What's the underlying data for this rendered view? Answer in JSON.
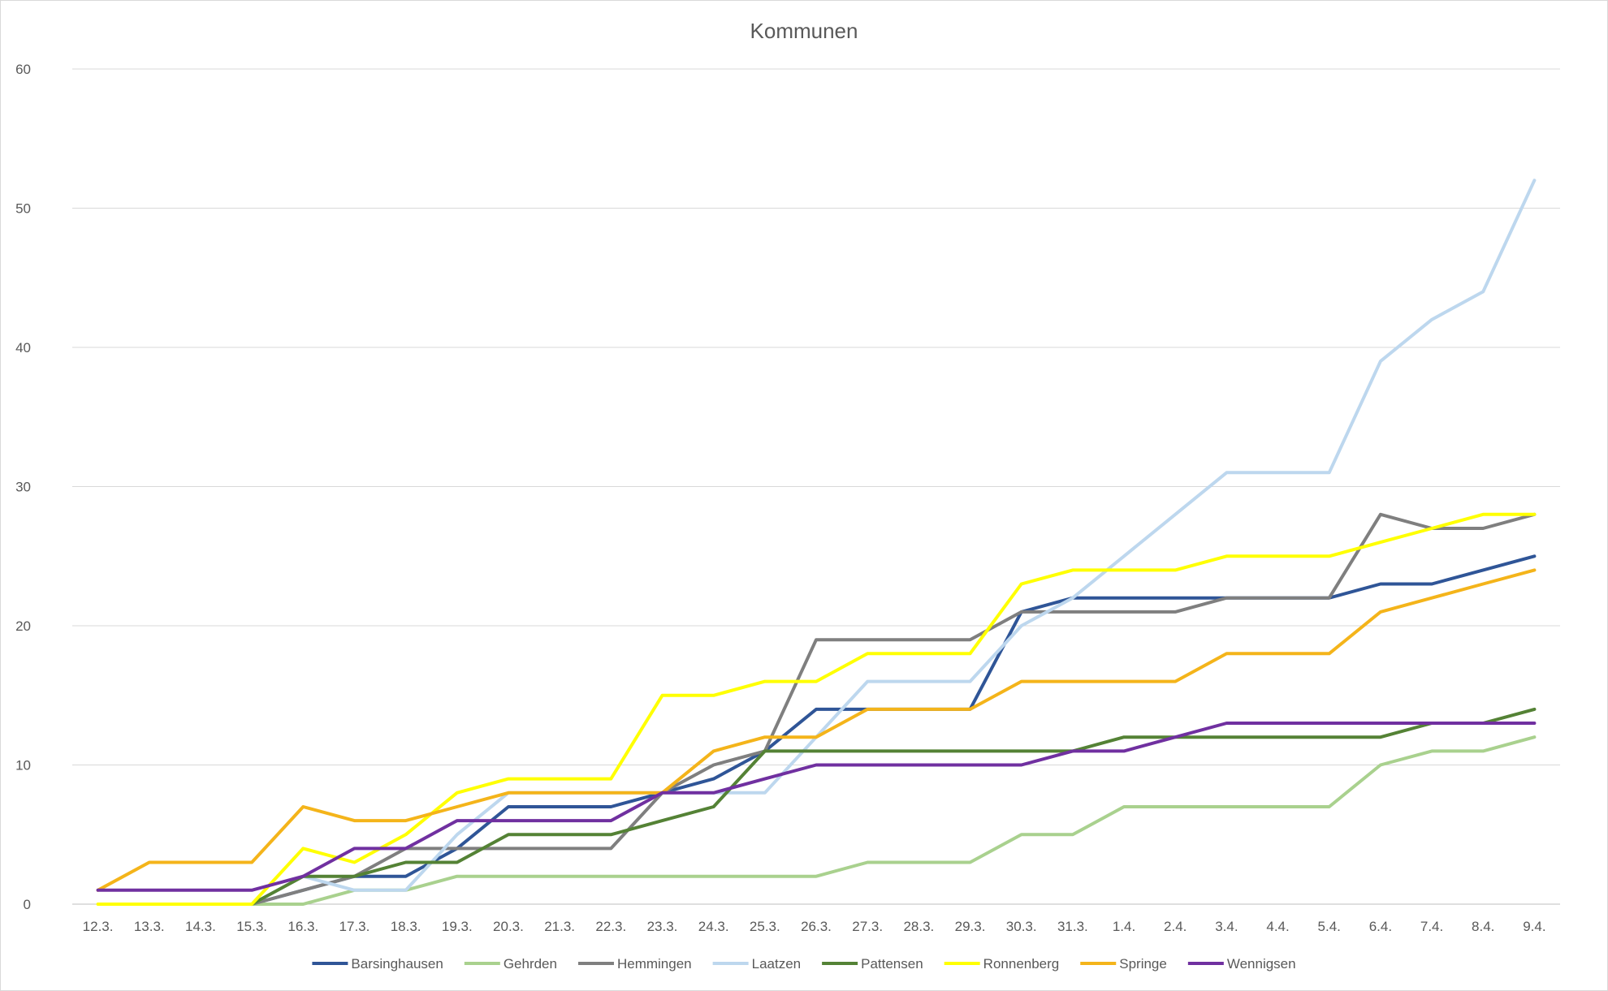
{
  "chart_data": {
    "type": "line",
    "title": "Kommunen",
    "xlabel": "",
    "ylabel": "",
    "ylim": [
      0,
      60
    ],
    "yticks": [
      0,
      10,
      20,
      30,
      40,
      50,
      60
    ],
    "grid": true,
    "legend": "bottom",
    "categories": [
      "12.3.",
      "13.3.",
      "14.3.",
      "15.3.",
      "16.3.",
      "17.3.",
      "18.3.",
      "19.3.",
      "20.3.",
      "21.3.",
      "22.3.",
      "23.3.",
      "24.3.",
      "25.3.",
      "26.3.",
      "27.3.",
      "28.3.",
      "29.3.",
      "30.3.",
      "31.3.",
      "1.4.",
      "2.4.",
      "3.4.",
      "4.4.",
      "5.4.",
      "6.4.",
      "7.4.",
      "8.4.",
      "9.4."
    ],
    "series": [
      {
        "name": "Barsinghausen",
        "color": "#2f5597",
        "values": [
          null,
          null,
          null,
          0,
          1,
          2,
          2,
          4,
          7,
          7,
          7,
          8,
          9,
          11,
          14,
          14,
          14,
          14,
          21,
          22,
          22,
          22,
          22,
          22,
          22,
          23,
          23,
          24,
          25
        ]
      },
      {
        "name": "Gehrden",
        "color": "#a9d18e",
        "values": [
          null,
          null,
          null,
          0,
          0,
          1,
          1,
          2,
          2,
          2,
          2,
          2,
          2,
          2,
          2,
          3,
          3,
          3,
          5,
          5,
          7,
          7,
          7,
          7,
          7,
          10,
          11,
          11,
          12
        ]
      },
      {
        "name": "Hemmingen",
        "color": "#7f7f7f",
        "values": [
          null,
          null,
          null,
          0,
          1,
          2,
          4,
          4,
          4,
          4,
          4,
          8,
          10,
          11,
          19,
          19,
          19,
          19,
          21,
          21,
          21,
          21,
          22,
          22,
          22,
          28,
          27,
          27,
          28
        ]
      },
      {
        "name": "Laatzen",
        "color": "#bdd7ee",
        "values": [
          null,
          null,
          null,
          0,
          2,
          1,
          1,
          5,
          8,
          8,
          8,
          8,
          8,
          8,
          12,
          16,
          16,
          16,
          20,
          22,
          25,
          28,
          31,
          31,
          31,
          39,
          42,
          44,
          52
        ]
      },
      {
        "name": "Pattensen",
        "color": "#548235",
        "values": [
          null,
          null,
          null,
          0,
          2,
          2,
          3,
          3,
          5,
          5,
          5,
          6,
          7,
          11,
          11,
          11,
          11,
          11,
          11,
          11,
          12,
          12,
          12,
          12,
          12,
          12,
          13,
          13,
          14
        ]
      },
      {
        "name": "Ronnenberg",
        "color": "#ffff00",
        "values": [
          0,
          0,
          0,
          0,
          4,
          3,
          5,
          8,
          9,
          9,
          9,
          15,
          15,
          16,
          16,
          18,
          18,
          18,
          23,
          24,
          24,
          24,
          25,
          25,
          25,
          26,
          27,
          28,
          28
        ]
      },
      {
        "name": "Springe",
        "color": "#f4b41a",
        "values": [
          1,
          3,
          3,
          3,
          7,
          6,
          6,
          7,
          8,
          8,
          8,
          8,
          11,
          12,
          12,
          14,
          14,
          14,
          16,
          16,
          16,
          16,
          18,
          18,
          18,
          21,
          22,
          23,
          24
        ]
      },
      {
        "name": "Wennigsen",
        "color": "#7030a0",
        "values": [
          1,
          1,
          1,
          1,
          2,
          4,
          4,
          6,
          6,
          6,
          6,
          8,
          8,
          9,
          10,
          10,
          10,
          10,
          10,
          11,
          11,
          12,
          13,
          13,
          13,
          13,
          13,
          13,
          13
        ]
      }
    ]
  }
}
